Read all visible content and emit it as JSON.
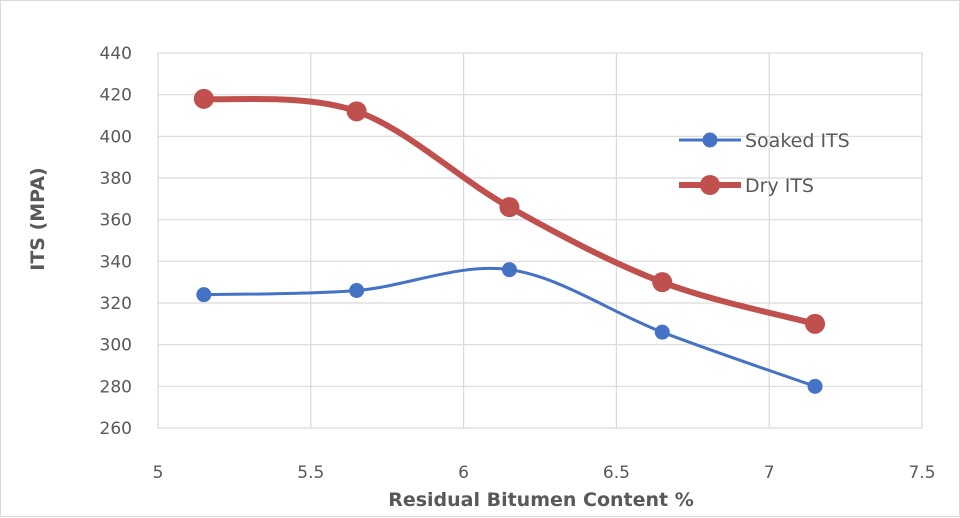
{
  "chart_data": {
    "type": "line",
    "title": "",
    "xlabel": "Residual Bitumen Content %",
    "ylabel": "ITS (MPA)",
    "xlim": [
      5,
      7.5
    ],
    "ylim": [
      260,
      440
    ],
    "x_ticks": [
      "5",
      "5.5",
      "6",
      "6.5",
      "7",
      "7.5"
    ],
    "y_ticks": [
      "260",
      "280",
      "300",
      "320",
      "340",
      "360",
      "380",
      "400",
      "420",
      "440"
    ],
    "grid": true,
    "smooth": true,
    "legend_position": "right",
    "x": [
      5.15,
      5.65,
      6.15,
      6.65,
      7.15
    ],
    "series": [
      {
        "name": "Soaked ITS",
        "color": "#4472c4",
        "values": [
          324,
          326,
          336,
          306,
          280
        ]
      },
      {
        "name": "Dry ITS",
        "color": "#c0504d",
        "values": [
          418,
          412,
          366,
          330,
          310
        ]
      }
    ]
  }
}
